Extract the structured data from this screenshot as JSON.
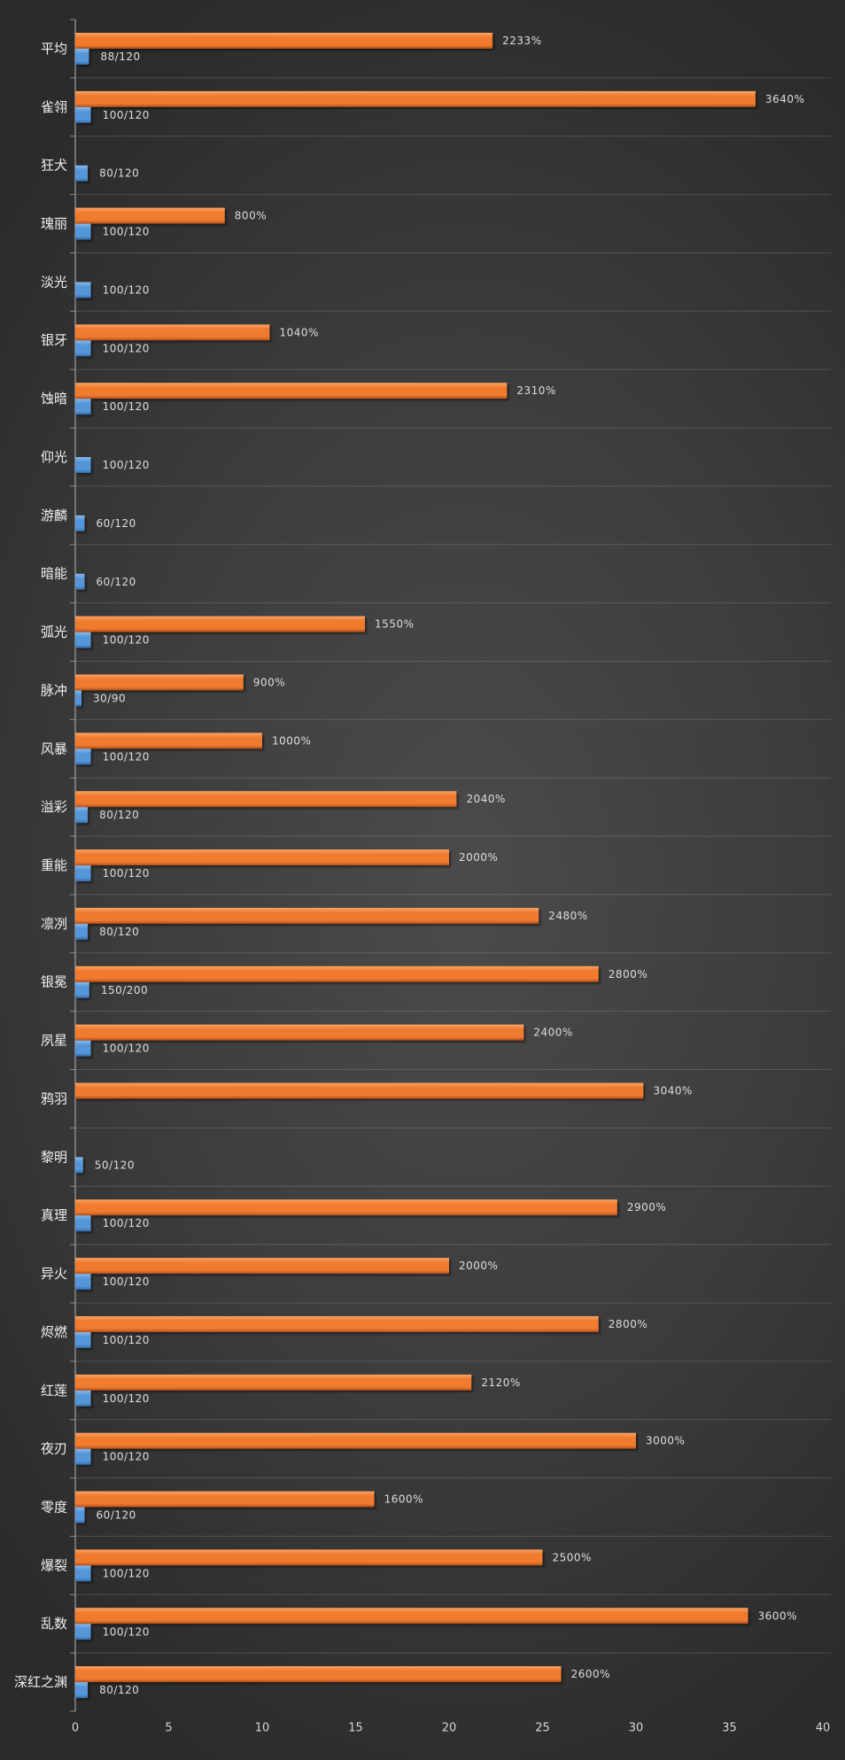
{
  "chart_data": {
    "type": "bar",
    "horizontal": true,
    "categories": [
      "平均",
      "雀翎",
      "狂犬",
      "瑰丽",
      "淡光",
      "银牙",
      "蚀暗",
      "仰光",
      "游麟",
      "暗能",
      "弧光",
      "脉冲",
      "风暴",
      "溢彩",
      "重能",
      "凛冽",
      "银冕",
      "夙星",
      "鸦羽",
      "黎明",
      "真理",
      "异火",
      "烬燃",
      "红莲",
      "夜刃",
      "零度",
      "爆裂",
      "乱数",
      "深红之渊"
    ],
    "series": [
      {
        "color": "#f07b2f",
        "highlight_color": "#f9a465",
        "shadow_color": "#b0501a",
        "values": [
          22.33,
          36.4,
          null,
          8,
          null,
          10.4,
          23.1,
          null,
          null,
          null,
          15.5,
          9,
          10,
          20.4,
          20,
          24.8,
          28,
          24,
          30.4,
          null,
          29,
          20,
          28,
          21.2,
          30,
          16,
          25,
          36,
          26
        ],
        "labels": [
          "2233%",
          "3640%",
          null,
          "800%",
          null,
          "1040%",
          "2310%",
          null,
          null,
          null,
          "1550%",
          "900%",
          "1000%",
          "2040%",
          "2000%",
          "2480%",
          "2800%",
          "2400%",
          "3040%",
          null,
          "2900%",
          "2000%",
          "2800%",
          "2120%",
          "3000%",
          "1600%",
          "2500%",
          "3600%",
          "2600%"
        ]
      },
      {
        "color": "#5596d8",
        "highlight_color": "#8ab9ea",
        "shadow_color": "#356aa6",
        "values": [
          0.733,
          0.833,
          0.667,
          0.833,
          0.833,
          0.833,
          0.833,
          0.833,
          0.5,
          0.5,
          0.833,
          0.333,
          0.833,
          0.667,
          0.833,
          0.667,
          0.75,
          0.833,
          null,
          0.417,
          0.833,
          0.833,
          0.833,
          0.833,
          0.833,
          0.5,
          0.833,
          0.833,
          0.667
        ],
        "labels": [
          "88/120",
          "100/120",
          "80/120",
          "100/120",
          "100/120",
          "100/120",
          "100/120",
          "100/120",
          "60/120",
          "60/120",
          "100/120",
          "30/90",
          "100/120",
          "80/120",
          "100/120",
          "80/120",
          "150/200",
          "100/120",
          null,
          "50/120",
          "100/120",
          "100/120",
          "100/120",
          "100/120",
          "100/120",
          "60/120",
          "100/120",
          "100/120",
          "80/120"
        ]
      }
    ],
    "xlim": [
      0,
      40
    ],
    "xticks": [
      0,
      5,
      10,
      15,
      20,
      25,
      30,
      35,
      40
    ],
    "grid": true
  }
}
